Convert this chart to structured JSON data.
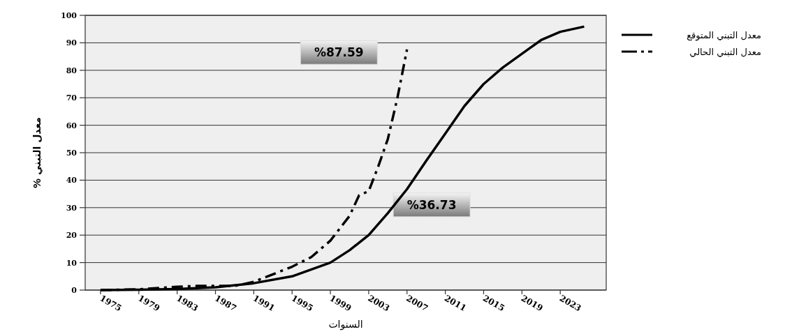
{
  "chart_data": {
    "type": "line",
    "xlabel": "السنوات",
    "ylabel": "معدل التبني %",
    "xlim": [
      1973.4,
      2027.8
    ],
    "xticks": [
      1975,
      1979,
      1983,
      1987,
      1991,
      1995,
      1999,
      2003,
      2007,
      2011,
      2015,
      2019,
      2023
    ],
    "ylim": [
      0,
      100
    ],
    "yticks": [
      0,
      10,
      20,
      30,
      40,
      50,
      60,
      70,
      80,
      90,
      100
    ],
    "grid": "y",
    "legend": "top right",
    "marker": "none",
    "series": [
      {
        "name": "معدل التبني المتوقع",
        "color": "#000000",
        "line_style": "solid",
        "x": [
          1975,
          1979,
          1983,
          1987,
          1991,
          1995,
          1999,
          2001,
          2003,
          2005,
          2007,
          2009,
          2011,
          2013,
          2015,
          2017,
          2019,
          2021,
          2023,
          2025.5
        ],
        "values": [
          0,
          0.1,
          0.4,
          1,
          2.5,
          5,
          10,
          14.5,
          20,
          28,
          36.73,
          47,
          57,
          67,
          75,
          81,
          86,
          91,
          94,
          95.9
        ]
      },
      {
        "name": "معدل التبني الحالي",
        "color": "#000000",
        "line_style": "dashed",
        "x": [
          1975,
          1979,
          1983,
          1985,
          1989,
          1991,
          1995,
          1997,
          1999,
          2001,
          2002,
          2003,
          2004,
          2005,
          2006,
          2007
        ],
        "values": [
          0,
          0.3,
          1.2,
          1.5,
          1.5,
          3,
          8.5,
          12,
          18,
          27,
          34.5,
          36,
          45,
          55,
          70,
          87.59
        ]
      }
    ],
    "annotations": [
      "%87.59",
      "%36.73"
    ]
  }
}
